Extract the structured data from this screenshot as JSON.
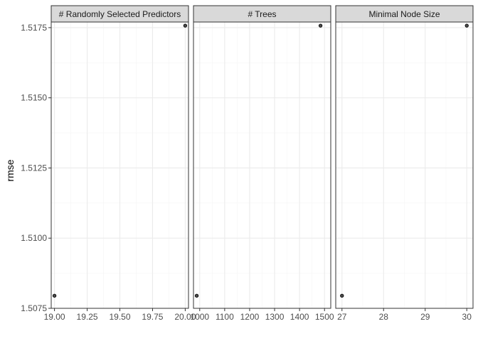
{
  "chart_data": {
    "type": "scatter",
    "ylabel": "rmse",
    "ylim": [
      1.5075,
      1.5177
    ],
    "y_ticks": [
      1.5075,
      1.51,
      1.5125,
      1.515,
      1.5175
    ],
    "y_tick_labels": [
      "1.5075",
      "1.5100",
      "1.5125",
      "1.5150",
      "1.5175"
    ],
    "grid": true,
    "colors": {
      "strip_fill": "#d9d9d9",
      "panel_border": "#333333",
      "grid_major": "#ebebeb",
      "grid_minor": "#f5f5f5",
      "point": "#000000"
    },
    "panels": [
      {
        "title": "# Randomly Selected Predictors",
        "xlim": [
          18.975,
          20.025
        ],
        "x_ticks": [
          19.0,
          19.25,
          19.5,
          19.75,
          20.0
        ],
        "x_tick_labels": [
          "19.00",
          "19.25",
          "19.50",
          "19.75",
          "20.00"
        ],
        "points": [
          {
            "x": 19,
            "y": 1.50795
          },
          {
            "x": 20,
            "y": 1.51757
          }
        ]
      },
      {
        "title": "# Trees",
        "xlim": [
          975,
          1525
        ],
        "x_ticks": [
          1000,
          1100,
          1200,
          1300,
          1400,
          1500
        ],
        "x_tick_labels": [
          "1000",
          "1100",
          "1200",
          "1300",
          "1400",
          "1500"
        ],
        "points": [
          {
            "x": 988,
            "y": 1.50795
          },
          {
            "x": 1484,
            "y": 1.51757
          }
        ]
      },
      {
        "title": "Minimal Node Size",
        "xlim": [
          26.85,
          30.15
        ],
        "x_ticks": [
          27,
          28,
          29,
          30
        ],
        "x_tick_labels": [
          "27",
          "28",
          "29",
          "30"
        ],
        "points": [
          {
            "x": 27,
            "y": 1.50795
          },
          {
            "x": 30,
            "y": 1.51757
          }
        ]
      }
    ]
  }
}
